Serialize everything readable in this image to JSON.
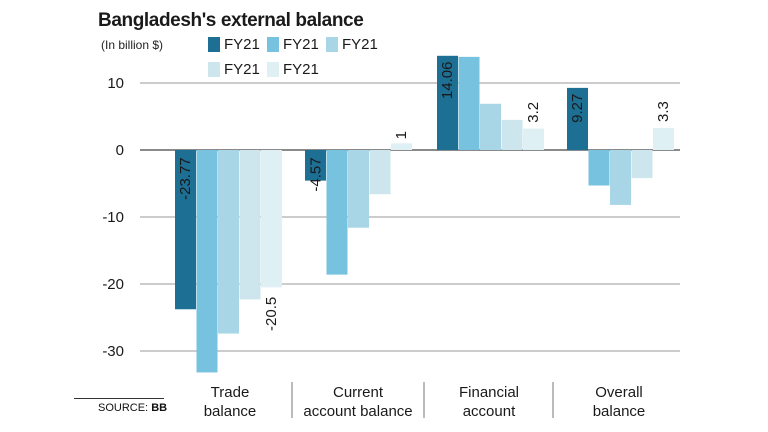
{
  "title": "Bangladesh's external balance",
  "subtitle": "(In billion $)",
  "source_label": "SOURCE:",
  "source_value": "BB",
  "colors": [
    "#1d6f94",
    "#77c3df",
    "#a8d6e6",
    "#cde6ee",
    "#dff0f5"
  ],
  "chart_data": {
    "type": "bar",
    "categories": [
      "Trade balance",
      "Current account balance",
      "Financial account",
      "Overall balance"
    ],
    "category_lines": [
      [
        "Trade",
        "balance"
      ],
      [
        "Current",
        "account balance"
      ],
      [
        "Financial",
        "account"
      ],
      [
        "Overall",
        "balance"
      ]
    ],
    "series": [
      {
        "name": "FY21",
        "values": [
          -23.77,
          -4.57,
          14.06,
          9.27
        ],
        "labels": [
          "-23.77",
          "-4.57",
          "14.06",
          "9.27"
        ]
      },
      {
        "name": "FY21",
        "values": [
          -33.2,
          -18.6,
          13.9,
          -5.3
        ]
      },
      {
        "name": "FY21",
        "values": [
          -27.4,
          -11.6,
          6.9,
          -8.2
        ]
      },
      {
        "name": "FY21",
        "values": [
          -22.3,
          -6.6,
          4.5,
          -4.2
        ]
      },
      {
        "name": "FY21",
        "values": [
          -20.5,
          1,
          3.2,
          3.3
        ],
        "labels": [
          "-20.5",
          "1",
          "3.2",
          "3.3"
        ]
      }
    ],
    "yticks": [
      10,
      0,
      -10,
      -20,
      -30
    ],
    "ylim": [
      -33.5,
      14.5
    ],
    "xlabel": "",
    "ylabel": ""
  }
}
